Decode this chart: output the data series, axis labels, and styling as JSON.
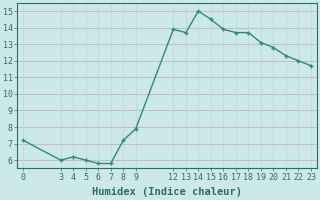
{
  "x": [
    0,
    3,
    4,
    5,
    6,
    7,
    8,
    9,
    12,
    13,
    14,
    15,
    16,
    17,
    18,
    19,
    20,
    21,
    22,
    23
  ],
  "y": [
    7.2,
    6.0,
    6.2,
    6.0,
    5.8,
    5.8,
    7.2,
    7.9,
    13.9,
    13.7,
    15.0,
    14.5,
    13.9,
    13.7,
    13.7,
    13.1,
    12.8,
    12.3,
    12.0,
    11.7
  ],
  "line_color": "#2e8b7a",
  "bg_color": "#cce8e8",
  "grid_color_h": "#c4aaaa",
  "grid_color_v": "#b8d8d8",
  "xlabel": "Humidex (Indice chaleur)",
  "ylim": [
    5.5,
    15.5
  ],
  "xlim": [
    -0.5,
    23.5
  ],
  "yticks": [
    6,
    7,
    8,
    9,
    10,
    11,
    12,
    13,
    14,
    15
  ],
  "xticks": [
    0,
    3,
    4,
    5,
    6,
    7,
    8,
    9,
    12,
    13,
    14,
    15,
    16,
    17,
    18,
    19,
    20,
    21,
    22,
    23
  ],
  "marker": "+",
  "markersize": 3,
  "linewidth": 1.0,
  "font_color": "#2e6e60",
  "tick_fontsize": 6,
  "label_fontsize": 7.5
}
